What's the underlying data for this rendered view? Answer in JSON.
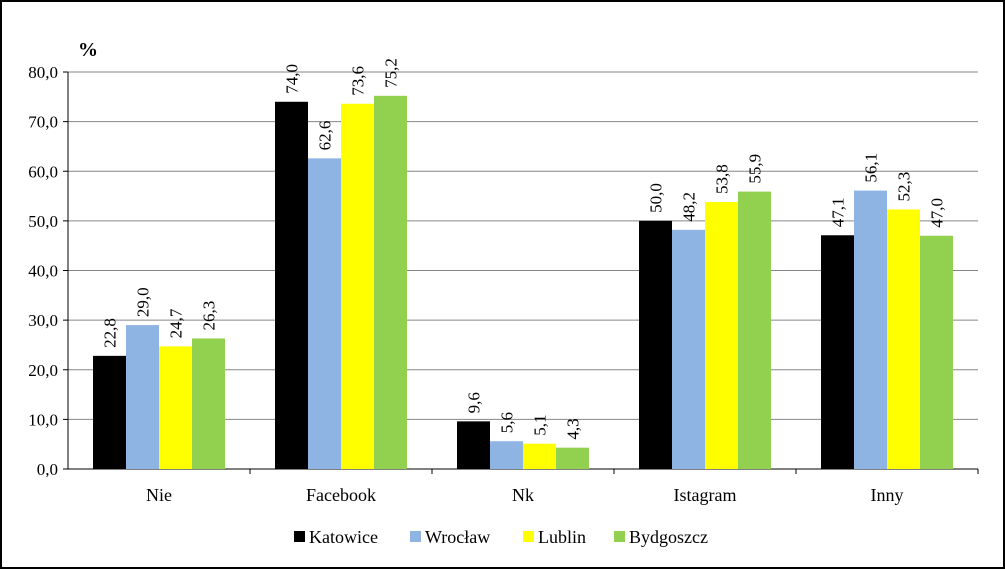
{
  "chart_data": {
    "type": "bar",
    "unit_label": "%",
    "categories": [
      "Nie",
      "Facebook",
      "Nk",
      "Istagram",
      "Inny"
    ],
    "series": [
      {
        "name": "Katowice",
        "color": "#000000",
        "values": [
          22.8,
          74.0,
          9.6,
          50.0,
          47.1
        ],
        "labels": [
          "22,8",
          "74,0",
          "9,6",
          "50,0",
          "47,1"
        ]
      },
      {
        "name": "Wrocław",
        "color": "#8EB4E3",
        "values": [
          29.0,
          62.6,
          5.6,
          48.2,
          56.1
        ],
        "labels": [
          "29,0",
          "62,6",
          "5,6",
          "48,2",
          "56,1"
        ]
      },
      {
        "name": "Lublin",
        "color": "#FFFF00",
        "values": [
          24.7,
          73.6,
          5.1,
          53.8,
          52.3
        ],
        "labels": [
          "24,7",
          "73,6",
          "5,1",
          "53,8",
          "52,3"
        ]
      },
      {
        "name": "Bydgoszcz",
        "color": "#92D050",
        "values": [
          26.3,
          75.2,
          4.3,
          55.9,
          47.0
        ],
        "labels": [
          "26,3",
          "75,2",
          "4,3",
          "55,9",
          "47,0"
        ]
      }
    ],
    "y_ticks": [
      "0,0",
      "10,0",
      "20,0",
      "30,0",
      "40,0",
      "50,0",
      "60,0",
      "70,0",
      "80,0"
    ],
    "ylim": [
      0,
      80
    ],
    "grid": true,
    "legend_position": "bottom"
  }
}
